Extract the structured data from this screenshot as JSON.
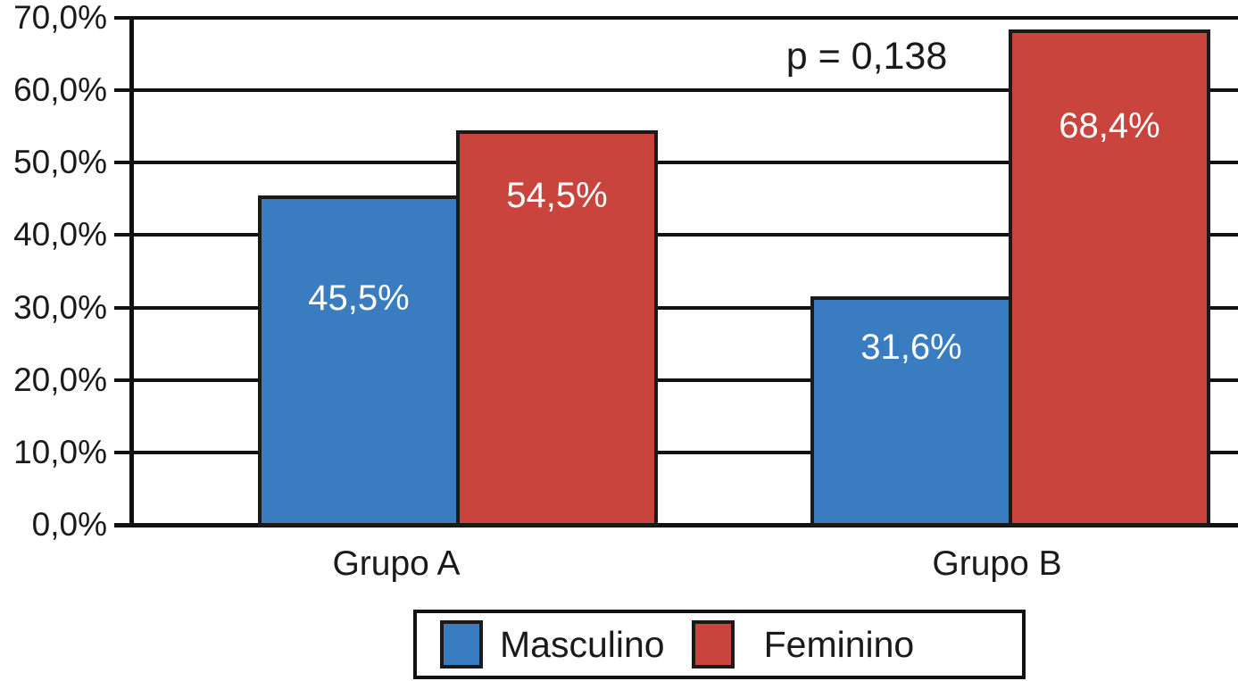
{
  "chart_data": {
    "type": "bar",
    "title": "",
    "categories": [
      "Grupo A",
      "Grupo B"
    ],
    "series": [
      {
        "name": "Masculino",
        "color": "#3a7cc0",
        "values": [
          45.5,
          31.6
        ],
        "value_labels": [
          "45,5%",
          "31,6%"
        ]
      },
      {
        "name": "Feminino",
        "color": "#c9443c",
        "values": [
          54.5,
          68.4
        ],
        "value_labels": [
          "54,5%",
          "68,4%"
        ]
      }
    ],
    "annotation": "p = 0,138",
    "y_axis": {
      "min": 0,
      "max": 70,
      "tick_values": [
        0,
        10,
        20,
        30,
        40,
        50,
        60,
        70
      ],
      "tick_labels": [
        "0,0%",
        "10,0%",
        "20,0%",
        "30,0%",
        "40,0%",
        "50,0%",
        "60,0%",
        "70,0%"
      ]
    },
    "legend": {
      "position": "bottom",
      "entries": [
        "Masculino",
        "Feminino"
      ]
    },
    "grid": true,
    "xlabel": "",
    "ylabel": ""
  },
  "colors": {
    "bar_blue": "#3a7cc0",
    "bar_red": "#c9443c",
    "line_black": "#111111",
    "text_dark": "#1a1a1a",
    "bar_label_white": "#ffffff",
    "background": "#ffffff"
  }
}
